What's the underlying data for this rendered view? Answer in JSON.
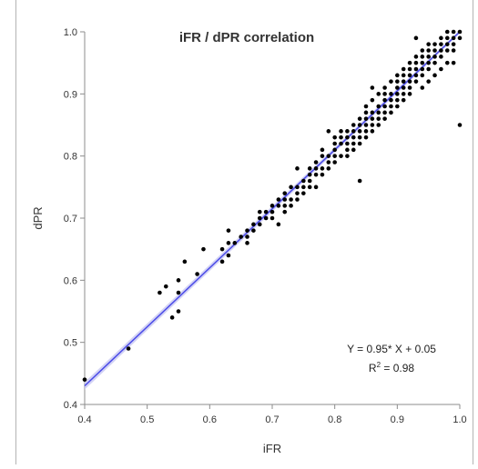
{
  "chart_data": {
    "type": "scatter",
    "title": "iFR / dPR correlation",
    "xlabel": "iFR",
    "ylabel": "dPR",
    "xlim": [
      0.4,
      1.0
    ],
    "ylim": [
      0.4,
      1.0
    ],
    "x_ticks": [
      "0.4",
      "0.5",
      "0.6",
      "0.7",
      "0.8",
      "0.9",
      "1.0"
    ],
    "y_ticks": [
      "0.4",
      "0.5",
      "0.6",
      "0.7",
      "0.8",
      "0.9",
      "1.0"
    ],
    "grid": false,
    "fit": {
      "slope": 0.95,
      "intercept": 0.05,
      "color": "#4a4ae8",
      "band_color": "#c8c8f2"
    },
    "annotation": {
      "equation": "Y = 0.95* X + 0.05",
      "r2_prefix": "R",
      "r2_sup": "2",
      "r2_suffix": " = 0.98"
    },
    "point_color": "#000000",
    "points": [
      [
        0.4,
        0.44
      ],
      [
        0.47,
        0.49
      ],
      [
        0.52,
        0.58
      ],
      [
        0.53,
        0.59
      ],
      [
        0.54,
        0.54
      ],
      [
        0.55,
        0.55
      ],
      [
        0.55,
        0.58
      ],
      [
        0.55,
        0.6
      ],
      [
        0.56,
        0.63
      ],
      [
        0.58,
        0.61
      ],
      [
        0.59,
        0.65
      ],
      [
        0.62,
        0.65
      ],
      [
        0.62,
        0.63
      ],
      [
        0.63,
        0.64
      ],
      [
        0.63,
        0.66
      ],
      [
        0.63,
        0.68
      ],
      [
        0.64,
        0.66
      ],
      [
        0.65,
        0.67
      ],
      [
        0.66,
        0.68
      ],
      [
        0.66,
        0.67
      ],
      [
        0.67,
        0.69
      ],
      [
        0.67,
        0.68
      ],
      [
        0.68,
        0.7
      ],
      [
        0.68,
        0.71
      ],
      [
        0.69,
        0.7
      ],
      [
        0.69,
        0.71
      ],
      [
        0.7,
        0.7
      ],
      [
        0.7,
        0.72
      ],
      [
        0.71,
        0.72
      ],
      [
        0.71,
        0.73
      ],
      [
        0.71,
        0.69
      ],
      [
        0.72,
        0.71
      ],
      [
        0.72,
        0.73
      ],
      [
        0.72,
        0.74
      ],
      [
        0.73,
        0.72
      ],
      [
        0.73,
        0.75
      ],
      [
        0.74,
        0.74
      ],
      [
        0.74,
        0.73
      ],
      [
        0.74,
        0.78
      ],
      [
        0.75,
        0.75
      ],
      [
        0.75,
        0.74
      ],
      [
        0.75,
        0.76
      ],
      [
        0.76,
        0.76
      ],
      [
        0.76,
        0.77
      ],
      [
        0.76,
        0.78
      ],
      [
        0.77,
        0.77
      ],
      [
        0.77,
        0.75
      ],
      [
        0.77,
        0.79
      ],
      [
        0.78,
        0.78
      ],
      [
        0.78,
        0.77
      ],
      [
        0.78,
        0.8
      ],
      [
        0.78,
        0.81
      ],
      [
        0.79,
        0.79
      ],
      [
        0.79,
        0.8
      ],
      [
        0.79,
        0.84
      ],
      [
        0.8,
        0.81
      ],
      [
        0.8,
        0.79
      ],
      [
        0.8,
        0.8
      ],
      [
        0.8,
        0.82
      ],
      [
        0.81,
        0.8
      ],
      [
        0.81,
        0.82
      ],
      [
        0.81,
        0.84
      ],
      [
        0.82,
        0.81
      ],
      [
        0.82,
        0.82
      ],
      [
        0.82,
        0.83
      ],
      [
        0.83,
        0.82
      ],
      [
        0.83,
        0.84
      ],
      [
        0.83,
        0.85
      ],
      [
        0.83,
        0.83
      ],
      [
        0.84,
        0.83
      ],
      [
        0.84,
        0.85
      ],
      [
        0.84,
        0.86
      ],
      [
        0.84,
        0.76
      ],
      [
        0.85,
        0.84
      ],
      [
        0.85,
        0.86
      ],
      [
        0.85,
        0.87
      ],
      [
        0.85,
        0.88
      ],
      [
        0.86,
        0.85
      ],
      [
        0.86,
        0.87
      ],
      [
        0.86,
        0.89
      ],
      [
        0.86,
        0.91
      ],
      [
        0.87,
        0.86
      ],
      [
        0.87,
        0.88
      ],
      [
        0.87,
        0.9
      ],
      [
        0.88,
        0.87
      ],
      [
        0.88,
        0.89
      ],
      [
        0.88,
        0.9
      ],
      [
        0.88,
        0.91
      ],
      [
        0.89,
        0.88
      ],
      [
        0.89,
        0.9
      ],
      [
        0.89,
        0.92
      ],
      [
        0.9,
        0.89
      ],
      [
        0.9,
        0.91
      ],
      [
        0.9,
        0.93
      ],
      [
        0.9,
        0.88
      ],
      [
        0.91,
        0.9
      ],
      [
        0.91,
        0.92
      ],
      [
        0.91,
        0.94
      ],
      [
        0.91,
        0.89
      ],
      [
        0.92,
        0.91
      ],
      [
        0.92,
        0.93
      ],
      [
        0.92,
        0.95
      ],
      [
        0.92,
        0.9
      ],
      [
        0.93,
        0.92
      ],
      [
        0.93,
        0.94
      ],
      [
        0.93,
        0.96
      ],
      [
        0.93,
        0.99
      ],
      [
        0.94,
        0.93
      ],
      [
        0.94,
        0.95
      ],
      [
        0.94,
        0.97
      ],
      [
        0.94,
        0.91
      ],
      [
        0.95,
        0.94
      ],
      [
        0.95,
        0.96
      ],
      [
        0.95,
        0.98
      ],
      [
        0.95,
        0.92
      ],
      [
        0.96,
        0.95
      ],
      [
        0.96,
        0.97
      ],
      [
        0.96,
        0.93
      ],
      [
        0.97,
        0.96
      ],
      [
        0.97,
        0.98
      ],
      [
        0.97,
        0.99
      ],
      [
        0.97,
        0.94
      ],
      [
        0.98,
        0.97
      ],
      [
        0.98,
        0.99
      ],
      [
        0.98,
        1.0
      ],
      [
        0.98,
        0.95
      ],
      [
        0.99,
        0.98
      ],
      [
        0.99,
        1.0
      ],
      [
        0.99,
        0.99
      ],
      [
        0.99,
        0.95
      ],
      [
        1.0,
        0.99
      ],
      [
        1.0,
        1.0
      ],
      [
        1.0,
        0.85
      ],
      [
        0.84,
        0.84
      ],
      [
        0.82,
        0.84
      ],
      [
        0.83,
        0.81
      ],
      [
        0.81,
        0.83
      ],
      [
        0.86,
        0.84
      ],
      [
        0.87,
        0.85
      ],
      [
        0.88,
        0.86
      ],
      [
        0.89,
        0.87
      ],
      [
        0.89,
        0.89
      ],
      [
        0.9,
        0.9
      ],
      [
        0.91,
        0.91
      ],
      [
        0.92,
        0.92
      ],
      [
        0.93,
        0.93
      ],
      [
        0.94,
        0.94
      ],
      [
        0.95,
        0.95
      ],
      [
        0.96,
        0.96
      ],
      [
        0.97,
        0.97
      ],
      [
        0.96,
        0.98
      ],
      [
        0.98,
        0.98
      ],
      [
        0.99,
        0.97
      ],
      [
        0.87,
        0.87
      ],
      [
        0.85,
        0.85
      ],
      [
        0.86,
        0.86
      ],
      [
        0.88,
        0.88
      ],
      [
        0.9,
        0.92
      ],
      [
        0.91,
        0.93
      ],
      [
        0.92,
        0.94
      ],
      [
        0.93,
        0.95
      ],
      [
        0.94,
        0.96
      ],
      [
        0.95,
        0.97
      ],
      [
        0.85,
        0.83
      ],
      [
        0.84,
        0.82
      ],
      [
        0.76,
        0.75
      ],
      [
        0.79,
        0.78
      ],
      [
        0.8,
        0.83
      ],
      [
        0.82,
        0.8
      ],
      [
        0.73,
        0.73
      ],
      [
        0.7,
        0.71
      ],
      [
        0.68,
        0.69
      ],
      [
        0.66,
        0.66
      ],
      [
        0.72,
        0.72
      ],
      [
        0.74,
        0.75
      ],
      [
        0.77,
        0.78
      ]
    ]
  }
}
